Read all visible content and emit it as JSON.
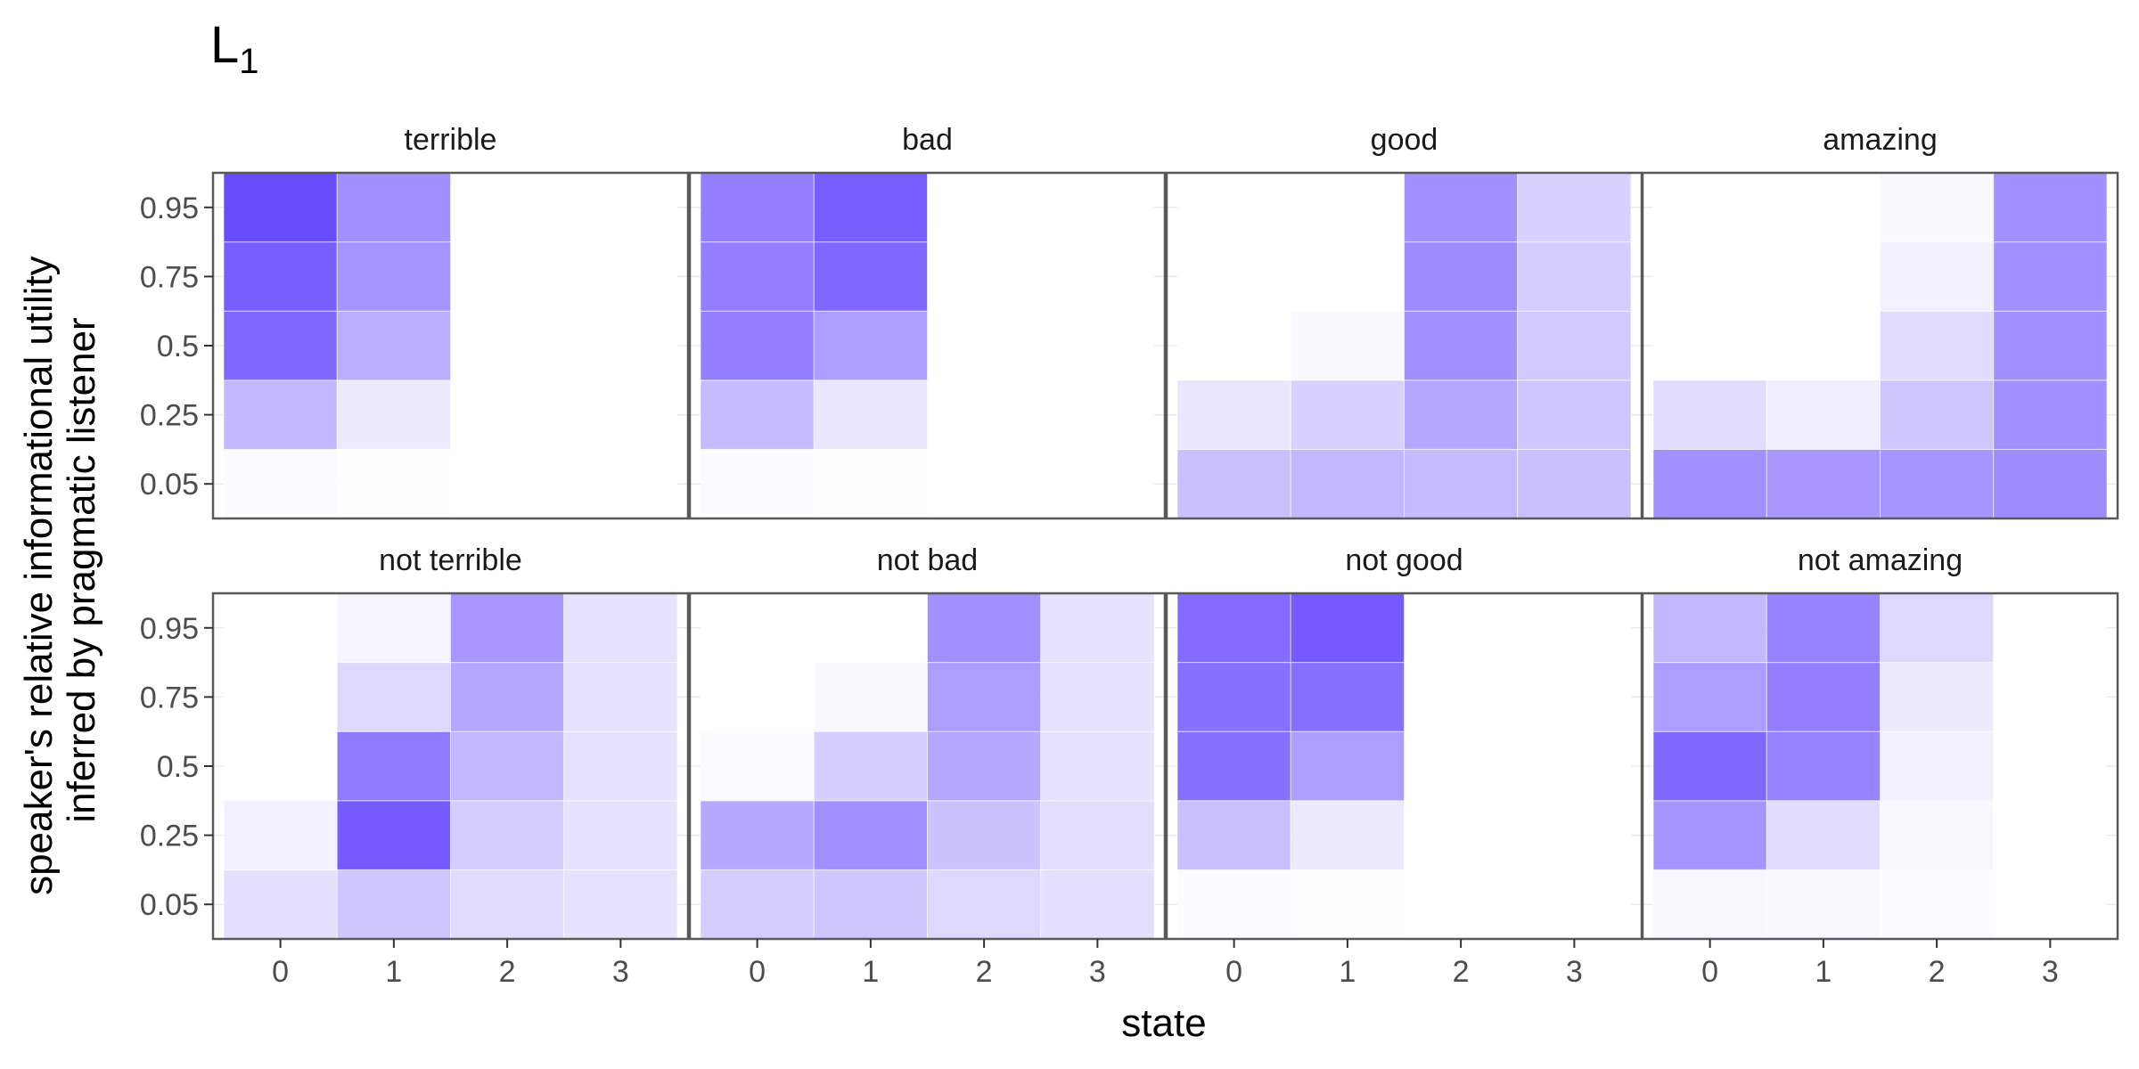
{
  "chart_data": {
    "type": "heatmap",
    "title": "L",
    "title_subscript": "1",
    "xlabel": "state",
    "ylabel_lines": [
      "speaker's relative informational utility",
      "inferred by pragmatic listener"
    ],
    "x_categories": [
      "0",
      "1",
      "2",
      "3"
    ],
    "y_categories": [
      "0.05",
      "0.25",
      "0.5",
      "0.75",
      "0.95"
    ],
    "value_range": [
      0,
      1
    ],
    "color_low": "#ffffff",
    "color_high": "#6a4cff",
    "grid_color": "#ebebeb",
    "panel_border_color": "#595959",
    "panels": [
      {
        "label": "terrible",
        "values": [
          [
            0.02,
            0.01,
            0.0,
            0.0
          ],
          [
            0.4,
            0.12,
            0.0,
            0.0
          ],
          [
            0.85,
            0.45,
            0.0,
            0.0
          ],
          [
            0.9,
            0.6,
            0.0,
            0.0
          ],
          [
            1.0,
            0.62,
            0.0,
            0.0
          ]
        ]
      },
      {
        "label": "bad",
        "values": [
          [
            0.02,
            0.01,
            0.0,
            0.0
          ],
          [
            0.38,
            0.14,
            0.0,
            0.0
          ],
          [
            0.72,
            0.55,
            0.0,
            0.0
          ],
          [
            0.72,
            0.85,
            0.0,
            0.0
          ],
          [
            0.72,
            0.9,
            0.0,
            0.0
          ]
        ]
      },
      {
        "label": "good",
        "values": [
          [
            0.35,
            0.4,
            0.38,
            0.35
          ],
          [
            0.14,
            0.26,
            0.5,
            0.32
          ],
          [
            0.0,
            0.04,
            0.62,
            0.3
          ],
          [
            0.0,
            0.0,
            0.65,
            0.28
          ],
          [
            0.0,
            0.0,
            0.62,
            0.26
          ]
        ]
      },
      {
        "label": "amazing",
        "values": [
          [
            0.62,
            0.58,
            0.6,
            0.65
          ],
          [
            0.2,
            0.1,
            0.32,
            0.62
          ],
          [
            0.0,
            0.0,
            0.2,
            0.62
          ],
          [
            0.0,
            0.0,
            0.08,
            0.62
          ],
          [
            0.0,
            0.0,
            0.04,
            0.62
          ]
        ]
      },
      {
        "label": "not terrible",
        "values": [
          [
            0.18,
            0.32,
            0.2,
            0.16
          ],
          [
            0.08,
            0.92,
            0.28,
            0.16
          ],
          [
            0.0,
            0.75,
            0.4,
            0.16
          ],
          [
            0.0,
            0.22,
            0.5,
            0.16
          ],
          [
            0.0,
            0.06,
            0.58,
            0.16
          ]
        ]
      },
      {
        "label": "not bad",
        "values": [
          [
            0.28,
            0.32,
            0.22,
            0.18
          ],
          [
            0.48,
            0.62,
            0.34,
            0.18
          ],
          [
            0.03,
            0.28,
            0.5,
            0.16
          ],
          [
            0.0,
            0.05,
            0.55,
            0.16
          ],
          [
            0.0,
            0.0,
            0.62,
            0.16
          ]
        ]
      },
      {
        "label": "not good",
        "values": [
          [
            0.02,
            0.01,
            0.0,
            0.0
          ],
          [
            0.36,
            0.13,
            0.0,
            0.0
          ],
          [
            0.8,
            0.55,
            0.0,
            0.0
          ],
          [
            0.8,
            0.8,
            0.0,
            0.0
          ],
          [
            0.82,
            0.92,
            0.0,
            0.0
          ]
        ]
      },
      {
        "label": "not amazing",
        "values": [
          [
            0.05,
            0.05,
            0.02,
            0.0
          ],
          [
            0.6,
            0.2,
            0.05,
            0.0
          ],
          [
            0.85,
            0.7,
            0.08,
            0.0
          ],
          [
            0.55,
            0.72,
            0.12,
            0.0
          ],
          [
            0.4,
            0.7,
            0.22,
            0.0
          ]
        ]
      }
    ]
  }
}
